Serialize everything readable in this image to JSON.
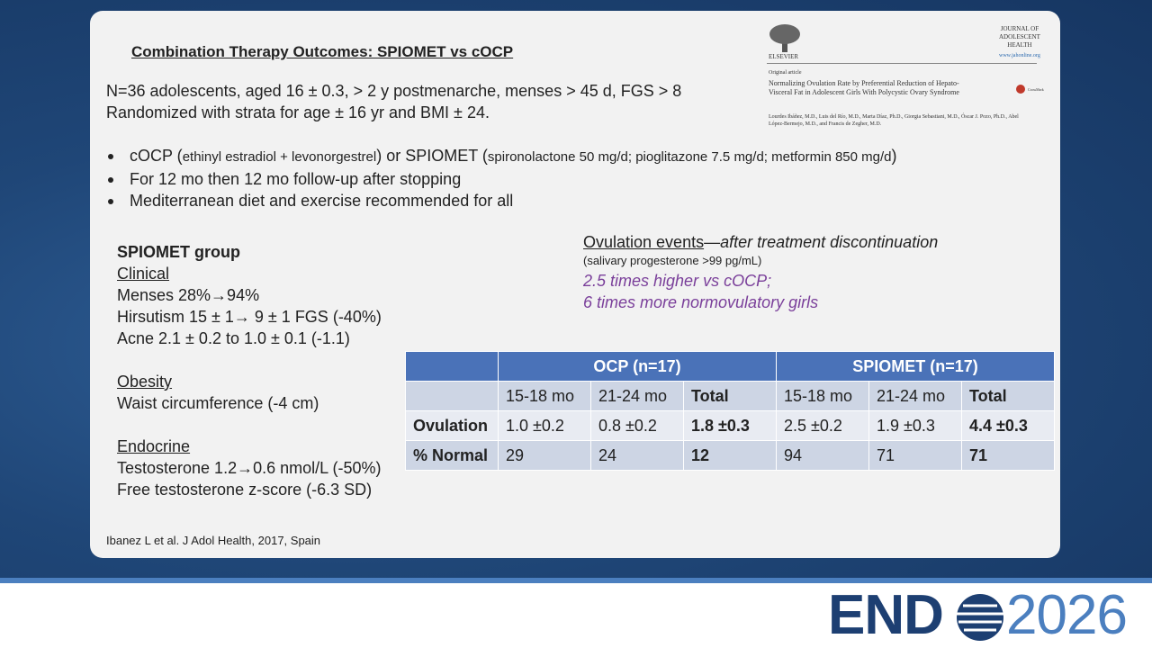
{
  "slide": {
    "title": "Combination Therapy Outcomes: SPIOMET vs cOCP",
    "intro": [
      "N=36 adolescents, aged 16 ± 0.3, > 2 y postmenarche, menses > 45 d, FGS > 8",
      "Randomized with strata for age ± 16 yr and BMI ± 24."
    ],
    "bullets": [
      [
        "cOCP (",
        "ethinyl estradiol + levonorgestrel",
        ") or SPIOMET (",
        "spironolactone 50 mg/d; pioglitazone 7.5 mg/d; metformin 850 mg/d",
        ")"
      ],
      [
        "For 12 mo then 12 mo follow-up after stopping"
      ],
      [
        "Mediterranean diet and exercise recommended for all"
      ]
    ],
    "spiomet": {
      "heading": "SPIOMET group",
      "sections": [
        {
          "title": "Clinical",
          "items": [
            "Menses 28%→94%",
            "Hirsutism 15 ± 1→ 9 ± 1 FGS (-40%)",
            "Acne 2.1 ± 0.2 to 1.0 ± 0.1 (-1.1)"
          ]
        },
        {
          "title": "Obesity",
          "items": [
            "Waist circumference (-4 cm)"
          ]
        },
        {
          "title": "Endocrine",
          "items": [
            "Testosterone 1.2→0.6 nmol/L (-50%)",
            "Free testosterone z-score (-6.3 SD)"
          ]
        }
      ]
    },
    "ovulation": {
      "heading": "Ovulation events",
      "dash": "—",
      "qualifier": "after treatment discontinuation",
      "note": "(salivary progesterone >99 pg/mL)",
      "findings": [
        "2.5 times higher vs cOCP;",
        "6 times more normovulatory girls"
      ]
    },
    "table": {
      "groups": [
        "OCP (n=17)",
        "SPIOMET (n=17)"
      ],
      "subheaders": [
        "15-18 mo",
        "21-24 mo",
        "Total",
        "15-18 mo",
        "21-24 mo",
        "Total"
      ],
      "rows": [
        [
          "Ovulation",
          "1.0 ±0.2",
          "0.8 ±0.2",
          "1.8 ±0.3",
          "2.5 ±0.2",
          "1.9 ±0.3",
          "4.4 ±0.3"
        ],
        [
          "% Normal",
          "29",
          "24",
          "12",
          "94",
          "71",
          "71"
        ]
      ]
    },
    "citation": "Ibanez L et al. J Adol Health, 2017, Spain",
    "article": {
      "publisher": "ELSEVIER",
      "journal": [
        "JOURNAL OF",
        "ADOLESCENT",
        "HEALTH"
      ],
      "url": "www.jahonline.org",
      "kind": "Original article",
      "title": "Normalizing Ovulation Rate by Preferential Reduction of Hepato-Visceral Fat in Adolescent Girls With Polycystic Ovary Syndrome",
      "authors": "Lourdes Ibáñez, M.D., Luis del Río, M.D., Marta Díaz, Ph.D., Giorgia Sebastiani, M.D., Óscar J. Pozo, Ph.D., Abel López-Bermejo, M.D., and Francis de Zegher, M.D.",
      "badge": "CrossMark"
    },
    "logo": {
      "brand": "END",
      "year": "2026"
    }
  }
}
